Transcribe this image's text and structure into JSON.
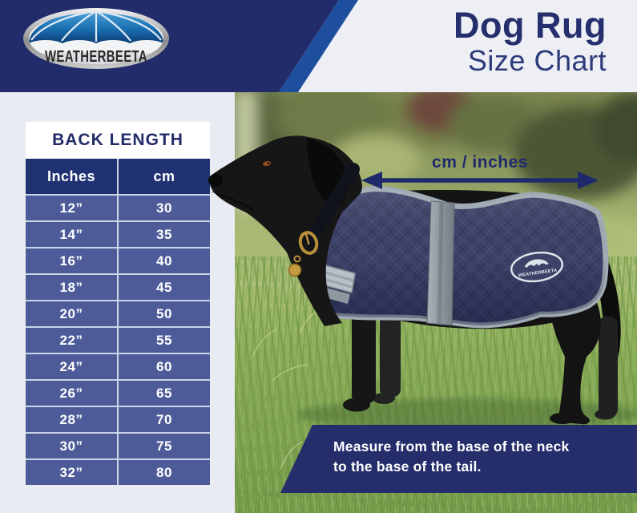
{
  "brand": {
    "name": "WEATHERBEETA"
  },
  "header": {
    "title_line1": "Dog Rug",
    "title_line2": "Size Chart"
  },
  "size_table": {
    "title": "BACK LENGTH",
    "columns": [
      "Inches",
      "cm"
    ],
    "rows": [
      [
        "12”",
        "30"
      ],
      [
        "14”",
        "35"
      ],
      [
        "16”",
        "40"
      ],
      [
        "18”",
        "45"
      ],
      [
        "20”",
        "50"
      ],
      [
        "22”",
        "55"
      ],
      [
        "24”",
        "60"
      ],
      [
        "26”",
        "65"
      ],
      [
        "28”",
        "70"
      ],
      [
        "30”",
        "75"
      ],
      [
        "32”",
        "80"
      ]
    ]
  },
  "photo": {
    "arrow_label": "cm / inches",
    "caption": {
      "line1": "Measure from the base of the neck",
      "line2": "to the base of the tail."
    },
    "rug_logo_text": "WEATHERBEETA"
  },
  "colors": {
    "navy": "#232c6b",
    "stripe_blue": "#1d4f9e",
    "table_row_blue": "#4d5c99",
    "table_header_navy": "#213272",
    "page_bg": "#e8ebf1",
    "title_navy": "#262f6d",
    "caption_navy": "#252e6b",
    "rug_navy": "#3d4267",
    "trim_gray": "#a0aab4"
  },
  "chart_data": {
    "type": "table",
    "title": "BACK LENGTH",
    "columns": [
      "Inches",
      "cm"
    ],
    "rows_numeric": [
      [
        12,
        30
      ],
      [
        14,
        35
      ],
      [
        16,
        40
      ],
      [
        18,
        45
      ],
      [
        20,
        50
      ],
      [
        22,
        55
      ],
      [
        24,
        60
      ],
      [
        26,
        65
      ],
      [
        28,
        70
      ],
      [
        30,
        75
      ],
      [
        32,
        80
      ]
    ]
  }
}
